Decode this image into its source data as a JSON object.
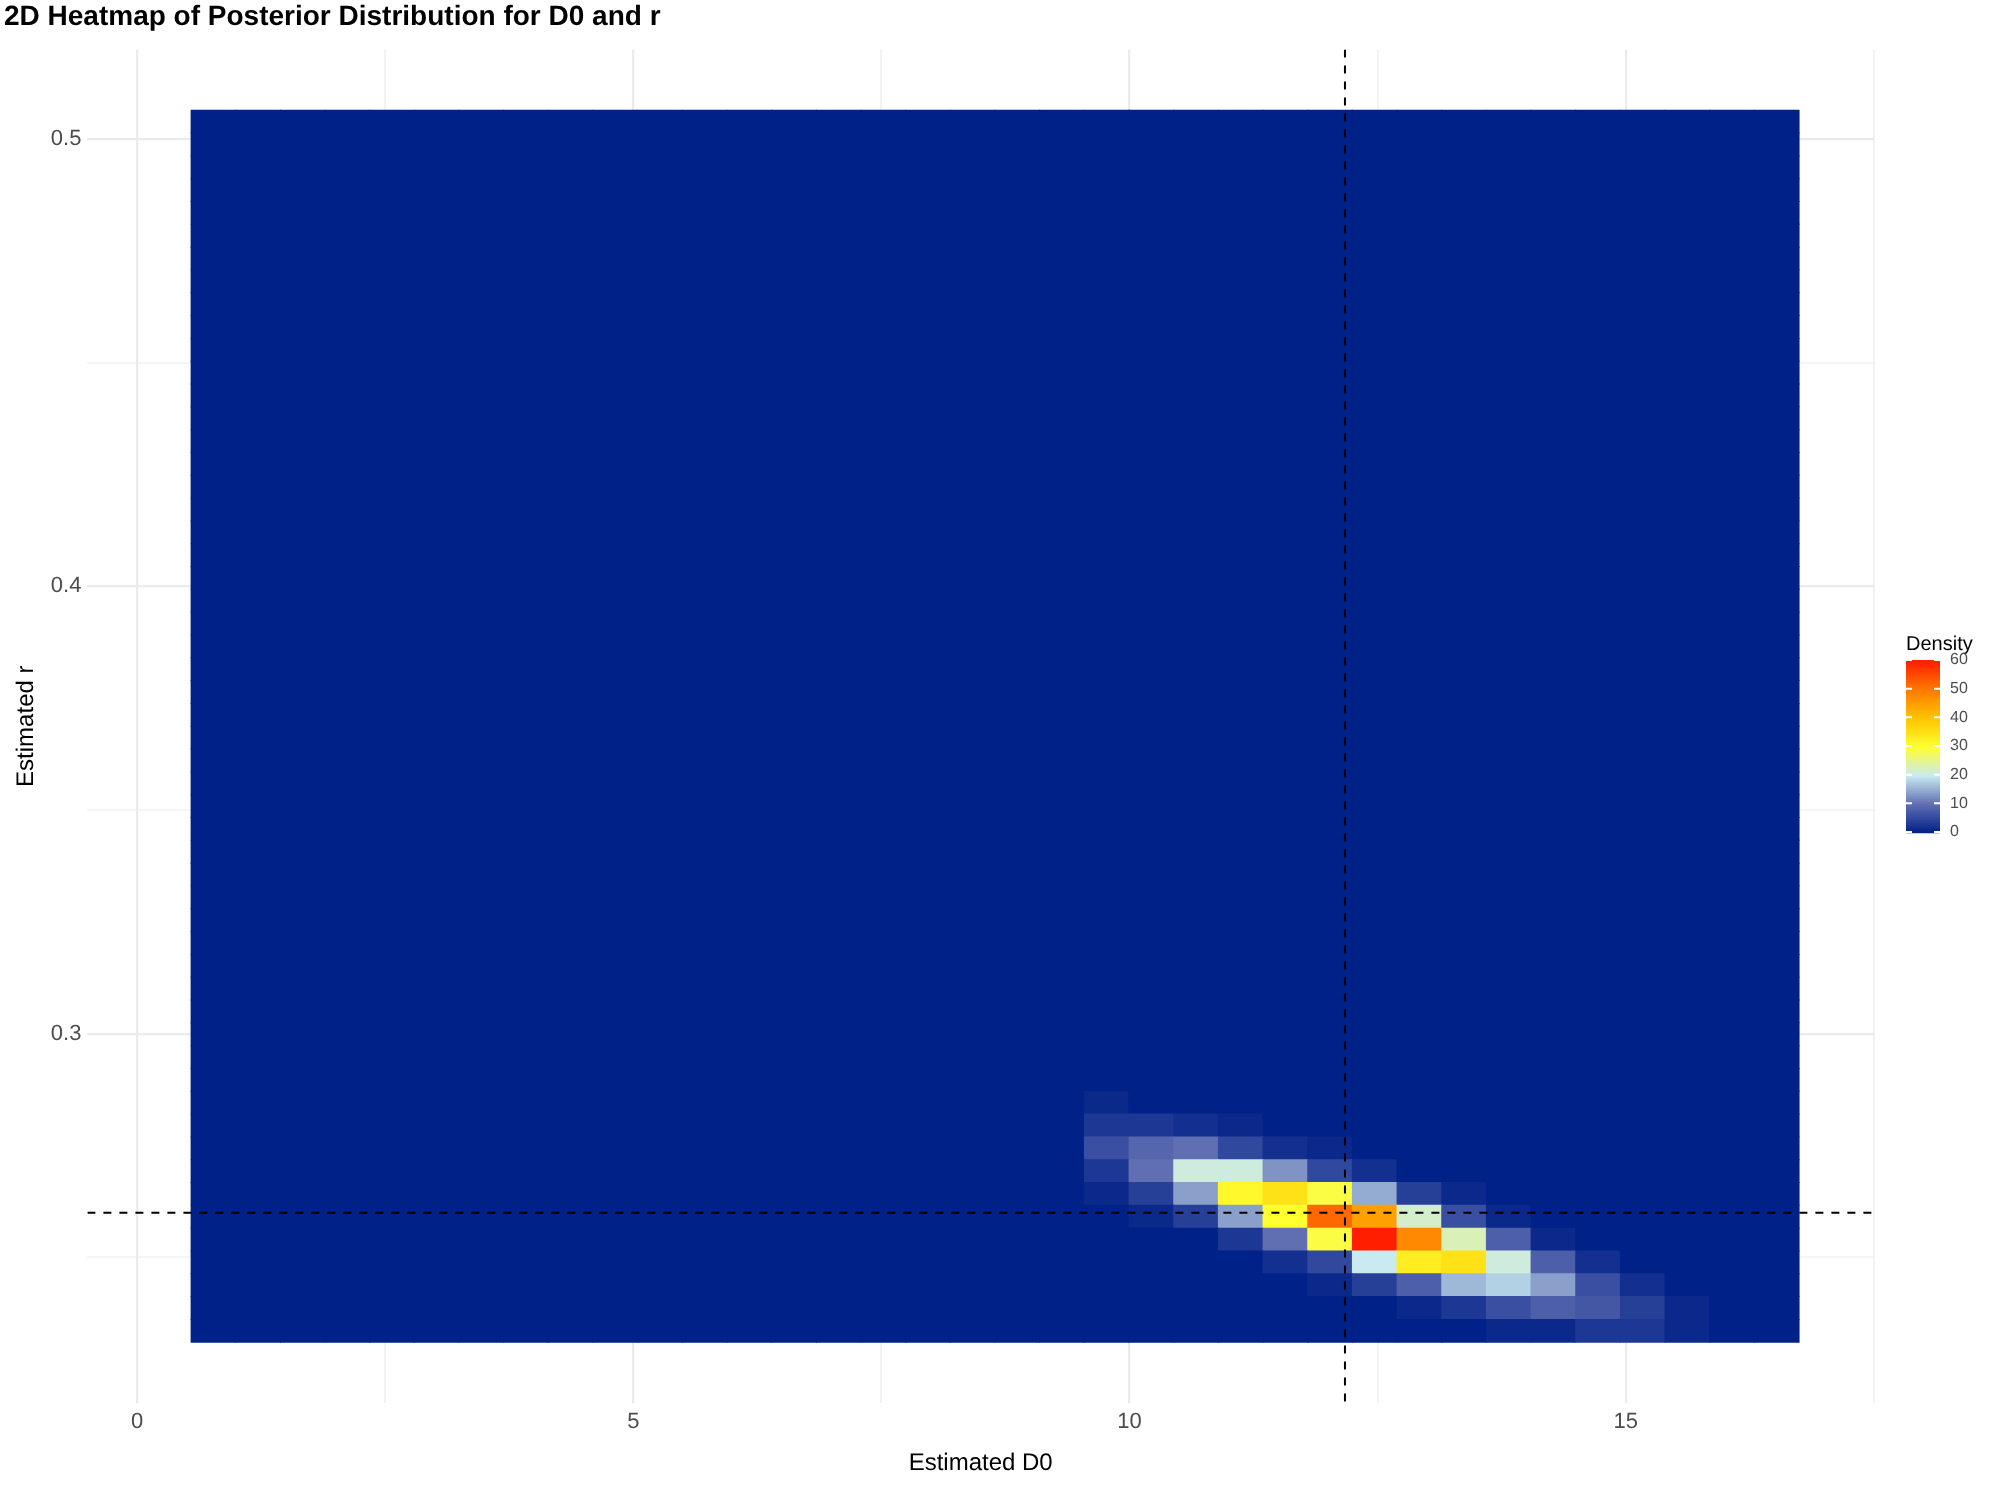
{
  "chart_data": {
    "type": "heatmap",
    "title": "2D Heatmap of Posterior Distribution for D0 and r",
    "xlabel": "Estimated D0",
    "ylabel": "Estimated r",
    "clabel": "Density",
    "x": [
      0.765,
      1.215,
      1.665,
      2.115,
      2.565,
      3.015,
      3.465,
      3.915,
      4.365,
      4.815,
      5.265,
      5.715,
      6.165,
      6.615,
      7.065,
      7.515,
      7.965,
      8.415,
      8.865,
      9.315,
      9.765,
      10.215,
      10.665,
      11.115,
      11.565,
      12.015,
      12.465,
      12.915,
      13.365,
      13.815,
      14.265,
      14.715,
      15.165,
      15.615,
      16.065,
      16.515
    ],
    "y": [
      0.504,
      0.4989,
      0.4938,
      0.4887,
      0.4836,
      0.4785,
      0.4734,
      0.4683,
      0.4632,
      0.4581,
      0.453,
      0.4479,
      0.4428,
      0.4377,
      0.4326,
      0.4275,
      0.4224,
      0.4173,
      0.4122,
      0.4071,
      0.402,
      0.3969,
      0.3918,
      0.3867,
      0.3816,
      0.3765,
      0.3714,
      0.3663,
      0.3612,
      0.3561,
      0.351,
      0.3459,
      0.3408,
      0.3357,
      0.3306,
      0.3255,
      0.3204,
      0.3153,
      0.3102,
      0.3051,
      0.3,
      0.2949,
      0.2898,
      0.2847,
      0.2796,
      0.2745,
      0.2694,
      0.2643,
      0.2592,
      0.2541,
      0.249,
      0.2439,
      0.2388,
      0.2337
    ],
    "cells": [
      [
        0,
        0,
        0,
        0,
        0,
        0,
        0,
        0,
        0,
        0,
        0,
        0,
        0,
        0,
        0,
        0,
        0,
        0,
        0,
        0,
        0,
        0,
        0,
        0,
        0,
        0,
        0,
        0,
        0,
        0,
        0,
        0,
        0,
        0,
        0,
        0
      ],
      [
        0,
        0,
        0,
        0,
        0,
        0,
        0,
        0,
        0,
        0,
        0,
        0,
        0,
        0,
        0,
        0,
        0,
        0,
        0,
        0,
        0,
        0,
        0,
        0,
        0,
        0,
        0,
        0,
        0,
        0,
        0,
        0,
        0,
        0,
        0,
        0
      ],
      [
        0,
        0,
        0,
        0,
        0,
        0,
        0,
        0,
        0,
        0,
        0,
        0,
        0,
        0,
        0,
        0,
        0,
        0,
        0,
        0,
        0,
        0,
        0,
        0,
        0,
        0,
        0,
        0,
        0,
        0,
        0,
        0,
        0,
        0,
        0,
        0
      ],
      [
        0,
        0,
        0,
        0,
        0,
        0,
        0,
        0,
        0,
        0,
        0,
        0,
        0,
        0,
        0,
        0,
        0,
        0,
        0,
        0,
        0,
        0,
        0,
        0,
        0,
        0,
        0,
        0,
        0,
        0,
        0,
        0,
        0,
        0,
        0,
        0
      ],
      [
        0,
        0,
        0,
        0,
        0,
        0,
        0,
        0,
        0,
        0,
        0,
        0,
        0,
        0,
        0,
        0,
        0,
        0,
        0,
        0,
        0,
        0,
        0,
        0,
        0,
        0,
        0,
        0,
        0,
        0,
        0,
        0,
        0,
        0,
        0,
        0
      ],
      [
        0,
        0,
        0,
        0,
        0,
        0,
        0,
        0,
        0,
        0,
        0,
        0,
        0,
        0,
        0,
        0,
        0,
        0,
        0,
        0,
        0,
        0,
        0,
        0,
        0,
        0,
        0,
        0,
        0,
        0,
        0,
        0,
        0,
        0,
        0,
        0
      ],
      [
        0,
        0,
        0,
        0,
        0,
        0,
        0,
        0,
        0,
        0,
        0,
        0,
        0,
        0,
        0,
        0,
        0,
        0,
        0,
        0,
        0,
        0,
        0,
        0,
        0,
        0,
        0,
        0,
        0,
        0,
        0,
        0,
        0,
        0,
        0,
        0
      ],
      [
        0,
        0,
        0,
        0,
        0,
        0,
        0,
        0,
        0,
        0,
        0,
        0,
        0,
        0,
        0,
        0,
        0,
        0,
        0,
        0,
        0,
        0,
        0,
        0,
        0,
        0,
        0,
        0,
        0,
        0,
        0,
        0,
        0,
        0,
        0,
        0
      ],
      [
        0,
        0,
        0,
        0,
        0,
        0,
        0,
        0,
        0,
        0,
        0,
        0,
        0,
        0,
        0,
        0,
        0,
        0,
        0,
        0,
        0,
        0,
        0,
        0,
        0,
        0,
        0,
        0,
        0,
        0,
        0,
        0,
        0,
        0,
        0,
        0
      ],
      [
        0,
        0,
        0,
        0,
        0,
        0,
        0,
        0,
        0,
        0,
        0,
        0,
        0,
        0,
        0,
        0,
        0,
        0,
        0,
        0,
        0,
        0,
        0,
        0,
        0,
        0,
        0,
        0,
        0,
        0,
        0,
        0,
        0,
        0,
        0,
        0
      ],
      [
        0,
        0,
        0,
        0,
        0,
        0,
        0,
        0,
        0,
        0,
        0,
        0,
        0,
        0,
        0,
        0,
        0,
        0,
        0,
        0,
        0,
        0,
        0,
        0,
        0,
        0,
        0,
        0,
        0,
        0,
        0,
        0,
        0,
        0,
        0,
        0
      ],
      [
        0,
        0,
        0,
        0,
        0,
        0,
        0,
        0,
        0,
        0,
        0,
        0,
        0,
        0,
        0,
        0,
        0,
        0,
        0,
        0,
        0,
        0,
        0,
        0,
        0,
        0,
        0,
        0,
        0,
        0,
        0,
        0,
        0,
        0,
        0,
        0
      ],
      [
        0,
        0,
        0,
        0,
        0,
        0,
        0,
        0,
        0,
        0,
        0,
        0,
        0,
        0,
        0,
        0,
        0,
        0,
        0,
        0,
        0,
        0,
        0,
        0,
        0,
        0,
        0,
        0,
        0,
        0,
        0,
        0,
        0,
        0,
        0,
        0
      ],
      [
        0,
        0,
        0,
        0,
        0,
        0,
        0,
        0,
        0,
        0,
        0,
        0,
        0,
        0,
        0,
        0,
        0,
        0,
        0,
        0,
        0,
        0,
        0,
        0,
        0,
        0,
        0,
        0,
        0,
        0,
        0,
        0,
        0,
        0,
        0,
        0
      ],
      [
        0,
        0,
        0,
        0,
        0,
        0,
        0,
        0,
        0,
        0,
        0,
        0,
        0,
        0,
        0,
        0,
        0,
        0,
        0,
        0,
        0,
        0,
        0,
        0,
        0,
        0,
        0,
        0,
        0,
        0,
        0,
        0,
        0,
        0,
        0,
        0
      ],
      [
        0,
        0,
        0,
        0,
        0,
        0,
        0,
        0,
        0,
        0,
        0,
        0,
        0,
        0,
        0,
        0,
        0,
        0,
        0,
        0,
        0,
        0,
        0,
        0,
        0,
        0,
        0,
        0,
        0,
        0,
        0,
        0,
        0,
        0,
        0,
        0
      ],
      [
        0,
        0,
        0,
        0,
        0,
        0,
        0,
        0,
        0,
        0,
        0,
        0,
        0,
        0,
        0,
        0,
        0,
        0,
        0,
        0,
        0,
        0,
        0,
        0,
        0,
        0,
        0,
        0,
        0,
        0,
        0,
        0,
        0,
        0,
        0,
        0
      ],
      [
        0,
        0,
        0,
        0,
        0,
        0,
        0,
        0,
        0,
        0,
        0,
        0,
        0,
        0,
        0,
        0,
        0,
        0,
        0,
        0,
        0,
        0,
        0,
        0,
        0,
        0,
        0,
        0,
        0,
        0,
        0,
        0,
        0,
        0,
        0,
        0
      ],
      [
        0,
        0,
        0,
        0,
        0,
        0,
        0,
        0,
        0,
        0,
        0,
        0,
        0,
        0,
        0,
        0,
        0,
        0,
        0,
        0,
        0,
        0,
        0,
        0,
        0,
        0,
        0,
        0,
        0,
        0,
        0,
        0,
        0,
        0,
        0,
        0
      ],
      [
        0,
        0,
        0,
        0,
        0,
        0,
        0,
        0,
        0,
        0,
        0,
        0,
        0,
        0,
        0,
        0,
        0,
        0,
        0,
        0,
        0,
        0,
        0,
        0,
        0,
        0,
        0,
        0,
        0,
        0,
        0,
        0,
        0,
        0,
        0,
        0
      ],
      [
        0,
        0,
        0,
        0,
        0,
        0,
        0,
        0,
        0,
        0,
        0,
        0,
        0,
        0,
        0,
        0,
        0,
        0,
        0,
        0,
        0,
        0,
        0,
        0,
        0,
        0,
        0,
        0,
        0,
        0,
        0,
        0,
        0,
        0,
        0,
        0
      ],
      [
        0,
        0,
        0,
        0,
        0,
        0,
        0,
        0,
        0,
        0,
        0,
        0,
        0,
        0,
        0,
        0,
        0,
        0,
        0,
        0,
        0,
        0,
        0,
        0,
        0,
        0,
        0,
        0,
        0,
        0,
        0,
        0,
        0,
        0,
        0,
        0
      ],
      [
        0,
        0,
        0,
        0,
        0,
        0,
        0,
        0,
        0,
        0,
        0,
        0,
        0,
        0,
        0,
        0,
        0,
        0,
        0,
        0,
        0,
        0,
        0,
        0,
        0,
        0,
        0,
        0,
        0,
        0,
        0,
        0,
        0,
        0,
        0,
        0
      ],
      [
        0,
        0,
        0,
        0,
        0,
        0,
        0,
        0,
        0,
        0,
        0,
        0,
        0,
        0,
        0,
        0,
        0,
        0,
        0,
        0,
        0,
        0,
        0,
        0,
        0,
        0,
        0,
        0,
        0,
        0,
        0,
        0,
        0,
        0,
        0,
        0
      ],
      [
        0,
        0,
        0,
        0,
        0,
        0,
        0,
        0,
        0,
        0,
        0,
        0,
        0,
        0,
        0,
        0,
        0,
        0,
        0,
        0,
        0,
        0,
        0,
        0,
        0,
        0,
        0,
        0,
        0,
        0,
        0,
        0,
        0,
        0,
        0,
        0
      ],
      [
        0,
        0,
        0,
        0,
        0,
        0,
        0,
        0,
        0,
        0,
        0,
        0,
        0,
        0,
        0,
        0,
        0,
        0,
        0,
        0,
        0,
        0,
        0,
        0,
        0,
        0,
        0,
        0,
        0,
        0,
        0,
        0,
        0,
        0,
        0,
        0
      ],
      [
        0,
        0,
        0,
        0,
        0,
        0,
        0,
        0,
        0,
        0,
        0,
        0,
        0,
        0,
        0,
        0,
        0,
        0,
        0,
        0,
        0,
        0,
        0,
        0,
        0,
        0,
        0,
        0,
        0,
        0,
        0,
        0,
        0,
        0,
        0,
        0
      ],
      [
        0,
        0,
        0,
        0,
        0,
        0,
        0,
        0,
        0,
        0,
        0,
        0,
        0,
        0,
        0,
        0,
        0,
        0,
        0,
        0,
        0,
        0,
        0,
        0,
        0,
        0,
        0,
        0,
        0,
        0,
        0,
        0,
        0,
        0,
        0,
        0
      ],
      [
        0,
        0,
        0,
        0,
        0,
        0,
        0,
        0,
        0,
        0,
        0,
        0,
        0,
        0,
        0,
        0,
        0,
        0,
        0,
        0,
        0,
        0,
        0,
        0,
        0,
        0,
        0,
        0,
        0,
        0,
        0,
        0,
        0,
        0,
        0,
        0
      ],
      [
        0,
        0,
        0,
        0,
        0,
        0,
        0,
        0,
        0,
        0,
        0,
        0,
        0,
        0,
        0,
        0,
        0,
        0,
        0,
        0,
        0,
        0,
        0,
        0,
        0,
        0,
        0,
        0,
        0,
        0,
        0,
        0,
        0,
        0,
        0,
        0
      ],
      [
        0,
        0,
        0,
        0,
        0,
        0,
        0,
        0,
        0,
        0,
        0,
        0,
        0,
        0,
        0,
        0,
        0,
        0,
        0,
        0,
        0,
        0,
        0,
        0,
        0,
        0,
        0,
        0,
        0,
        0,
        0,
        0,
        0,
        0,
        0,
        0
      ],
      [
        0,
        0,
        0,
        0,
        0,
        0,
        0,
        0,
        0,
        0,
        0,
        0,
        0,
        0,
        0,
        0,
        0,
        0,
        0,
        0,
        0,
        0,
        0,
        0,
        0,
        0,
        0,
        0,
        0,
        0,
        0,
        0,
        0,
        0,
        0,
        0
      ],
      [
        0,
        0,
        0,
        0,
        0,
        0,
        0,
        0,
        0,
        0,
        0,
        0,
        0,
        0,
        0,
        0,
        0,
        0,
        0,
        0,
        0,
        0,
        0,
        0,
        0,
        0,
        0,
        0,
        0,
        0,
        0,
        0,
        0,
        0,
        0,
        0
      ],
      [
        0,
        0,
        0,
        0,
        0,
        0,
        0,
        0,
        0,
        0,
        0,
        0,
        0,
        0,
        0,
        0,
        0,
        0,
        0,
        0,
        0,
        0,
        0,
        0,
        0,
        0,
        0,
        0,
        0,
        0,
        0,
        0,
        0,
        0,
        0,
        0
      ],
      [
        0,
        0,
        0,
        0,
        0,
        0,
        0,
        0,
        0,
        0,
        0,
        0,
        0,
        0,
        0,
        0,
        0,
        0,
        0,
        0,
        0,
        0,
        0,
        0,
        0,
        0,
        0,
        0,
        0,
        0,
        0,
        0,
        0,
        0,
        0,
        0
      ],
      [
        0,
        0,
        0,
        0,
        0,
        0,
        0,
        0,
        0,
        0,
        0,
        0,
        0,
        0,
        0,
        0,
        0,
        0,
        0,
        0,
        0,
        0,
        0,
        0,
        0,
        0,
        0,
        0,
        0,
        0,
        0,
        0,
        0,
        0,
        0,
        0
      ],
      [
        0,
        0,
        0,
        0,
        0,
        0,
        0,
        0,
        0,
        0,
        0,
        0,
        0,
        0,
        0,
        0,
        0,
        0,
        0,
        0,
        0,
        0,
        0,
        0,
        0,
        0,
        0,
        0,
        0,
        0,
        0,
        0,
        0,
        0,
        0,
        0
      ],
      [
        0,
        0,
        0,
        0,
        0,
        0,
        0,
        0,
        0,
        0,
        0,
        0,
        0,
        0,
        0,
        0,
        0,
        0,
        0,
        0,
        0,
        0,
        0,
        0,
        0,
        0,
        0,
        0,
        0,
        0,
        0,
        0,
        0,
        0,
        0,
        0
      ],
      [
        0,
        0,
        0,
        0,
        0,
        0,
        0,
        0,
        0,
        0,
        0,
        0,
        0,
        0,
        0,
        0,
        0,
        0,
        0,
        0,
        0,
        0,
        0,
        0,
        0,
        0,
        0,
        0,
        0,
        0,
        0,
        0,
        0,
        0,
        0,
        0
      ],
      [
        0,
        0,
        0,
        0,
        0,
        0,
        0,
        0,
        0,
        0,
        0,
        0,
        0,
        0,
        0,
        0,
        0,
        0,
        0,
        0,
        0,
        0,
        0,
        0,
        0,
        0,
        0,
        0,
        0,
        0,
        0,
        0,
        0,
        0,
        0,
        0
      ],
      [
        0,
        0,
        0,
        0,
        0,
        0,
        0,
        0,
        0,
        0,
        0,
        0,
        0,
        0,
        0,
        0,
        0,
        0,
        0,
        0,
        0,
        0,
        0,
        0,
        0,
        0,
        0,
        0,
        0,
        0,
        0,
        0,
        0,
        0,
        0,
        0
      ],
      [
        0,
        0,
        0,
        0,
        0,
        0,
        0,
        0,
        0,
        0,
        0,
        0,
        0,
        0,
        0,
        0,
        0,
        0,
        0,
        0,
        0,
        0,
        0,
        0,
        0,
        0,
        0,
        0,
        0,
        0,
        0,
        0,
        0,
        0,
        0,
        0
      ],
      [
        0,
        0,
        0,
        0,
        0,
        0,
        0,
        0,
        0,
        0,
        0,
        0,
        0,
        0,
        0,
        0,
        0,
        0,
        0,
        0,
        0,
        0,
        0,
        0,
        0,
        0,
        0,
        0,
        0,
        0,
        0,
        0,
        0,
        0,
        0,
        0
      ],
      [
        0,
        0,
        0,
        0,
        0,
        0,
        0,
        0,
        0,
        0,
        0,
        0,
        0,
        0,
        0,
        0,
        0,
        0,
        0,
        0,
        1,
        0,
        0,
        0,
        0,
        0,
        0,
        0,
        0,
        0,
        0,
        0,
        0,
        0,
        0,
        0
      ],
      [
        0,
        0,
        0,
        0,
        0,
        0,
        0,
        0,
        0,
        0,
        0,
        0,
        0,
        0,
        0,
        0,
        0,
        0,
        0,
        0,
        3,
        3,
        2,
        1,
        0,
        0,
        0,
        0,
        0,
        0,
        0,
        0,
        0,
        0,
        0,
        0
      ],
      [
        0,
        0,
        0,
        0,
        0,
        0,
        0,
        0,
        0,
        0,
        0,
        0,
        0,
        0,
        0,
        0,
        0,
        0,
        0,
        0,
        6,
        9,
        10,
        5,
        2,
        1,
        0,
        0,
        0,
        0,
        0,
        0,
        0,
        0,
        0,
        0
      ],
      [
        0,
        0,
        0,
        0,
        0,
        0,
        0,
        0,
        0,
        0,
        0,
        0,
        0,
        0,
        0,
        0,
        0,
        0,
        0,
        0,
        3,
        10,
        21,
        21,
        13,
        5,
        2,
        0,
        0,
        0,
        0,
        0,
        0,
        0,
        0,
        0
      ],
      [
        0,
        0,
        0,
        0,
        0,
        0,
        0,
        0,
        0,
        0,
        0,
        0,
        0,
        0,
        0,
        0,
        0,
        0,
        0,
        0,
        1,
        4,
        14,
        31,
        35,
        29,
        15,
        4,
        1,
        0,
        0,
        0,
        0,
        0,
        0,
        0
      ],
      [
        0,
        0,
        0,
        0,
        0,
        0,
        0,
        0,
        0,
        0,
        0,
        0,
        0,
        0,
        0,
        0,
        0,
        0,
        0,
        0,
        0,
        1,
        4,
        14,
        30,
        52,
        45,
        22,
        6,
        1,
        0,
        0,
        0,
        0,
        0,
        0
      ],
      [
        0,
        0,
        0,
        0,
        0,
        0,
        0,
        0,
        0,
        0,
        0,
        0,
        0,
        0,
        0,
        0,
        0,
        0,
        0,
        0,
        0,
        0,
        0,
        3,
        10,
        29,
        60,
        48,
        23,
        8,
        1,
        0,
        0,
        0,
        0,
        0
      ],
      [
        0,
        0,
        0,
        0,
        0,
        0,
        0,
        0,
        0,
        0,
        0,
        0,
        0,
        0,
        0,
        0,
        0,
        0,
        0,
        0,
        0,
        0,
        0,
        0,
        2,
        5,
        20,
        33,
        35,
        21,
        8,
        2,
        0,
        0,
        0,
        0
      ],
      [
        0,
        0,
        0,
        0,
        0,
        0,
        0,
        0,
        0,
        0,
        0,
        0,
        0,
        0,
        0,
        0,
        0,
        0,
        0,
        0,
        0,
        0,
        0,
        0,
        0,
        1,
        4,
        8,
        16,
        18,
        14,
        6,
        2,
        0,
        0,
        0
      ],
      [
        0,
        0,
        0,
        0,
        0,
        0,
        0,
        0,
        0,
        0,
        0,
        0,
        0,
        0,
        0,
        0,
        0,
        0,
        0,
        0,
        0,
        0,
        0,
        0,
        0,
        0,
        0,
        1,
        3,
        6,
        8,
        7,
        4,
        1,
        0,
        0
      ],
      [
        0,
        0,
        0,
        0,
        0,
        0,
        0,
        0,
        0,
        0,
        0,
        0,
        0,
        0,
        0,
        0,
        0,
        0,
        0,
        0,
        0,
        0,
        0,
        0,
        0,
        0,
        0,
        0,
        0,
        1,
        1,
        3,
        3,
        1,
        0,
        0
      ]
    ],
    "clim": [
      0,
      60
    ],
    "cticks": [
      0,
      10,
      20,
      30,
      40,
      50,
      60
    ],
    "xlim": [
      -0.5,
      17.5
    ],
    "xticks": [
      0,
      {
        "value": 2.5,
        "label": null
      },
      5,
      {
        "value": 7.5,
        "label": null
      },
      10,
      {
        "value": 12.5,
        "label": null
      },
      15,
      {
        "value": 17.5,
        "label": null
      }
    ],
    "ylim": [
      0.2175,
      0.52
    ],
    "yticks": [
      {
        "value": 0.25,
        "label": null
      },
      0.3,
      {
        "value": 0.35,
        "label": null
      },
      0.4,
      {
        "value": 0.45,
        "label": null
      },
      0.5
    ],
    "ref_lines": [
      {
        "axis": "x",
        "value": 12.17,
        "line_style": "dashed"
      },
      {
        "axis": "y",
        "value": 0.26,
        "line_style": "dashed"
      }
    ],
    "grid": true
  }
}
